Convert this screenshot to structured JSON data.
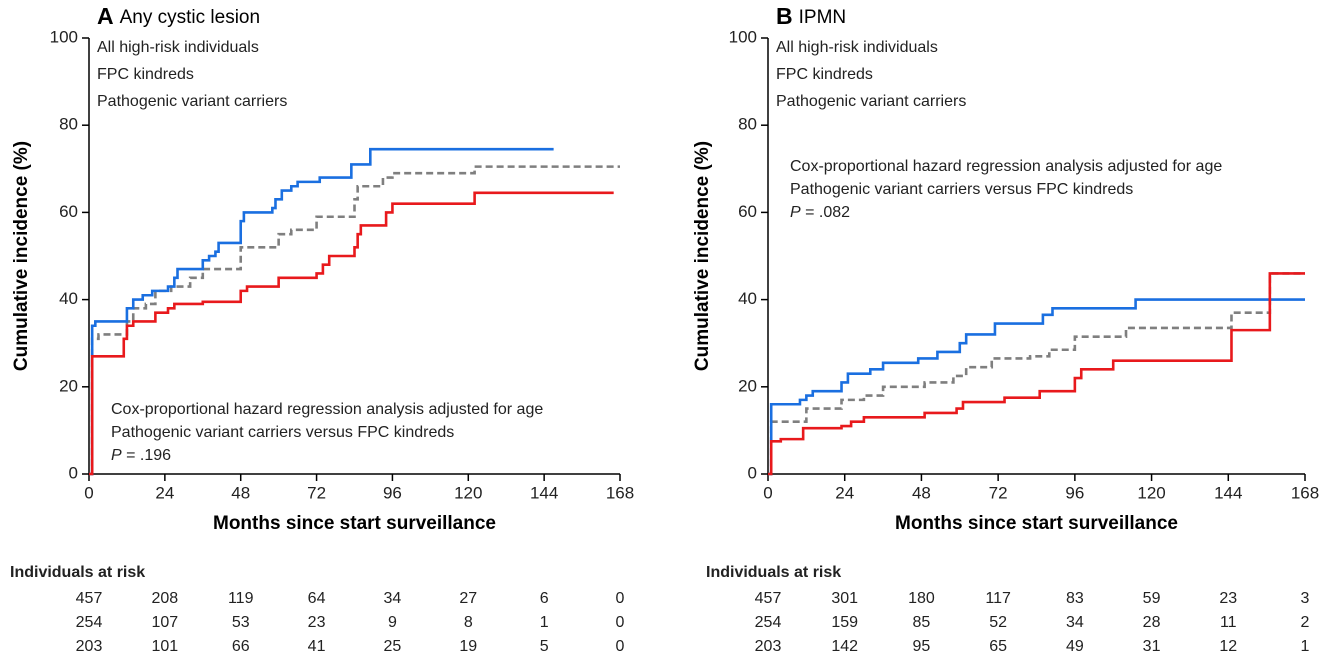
{
  "chart_data": [
    {
      "type": "step",
      "panel": "A",
      "title": "Any cystic lesion",
      "x_label": "Months since start surveillance",
      "y_label": "Cumulative incidence (%)",
      "xlim": [
        0,
        168
      ],
      "xticks": [
        0,
        24,
        48,
        72,
        96,
        120,
        144,
        168
      ],
      "ylim": [
        0,
        100
      ],
      "yticks": [
        0,
        20,
        40,
        60,
        80,
        100
      ],
      "series": [
        {
          "name": "All high-risk individuals",
          "color": "#7f7f7f",
          "dashed": true,
          "x": [
            0,
            1,
            3,
            12,
            14,
            18,
            21,
            26,
            32,
            36,
            48,
            60,
            64,
            72,
            84,
            85,
            93,
            96,
            122,
            168
          ],
          "values": [
            0,
            31,
            32,
            35,
            38,
            39,
            42,
            43,
            45,
            47,
            52,
            55,
            56,
            59,
            63,
            66,
            68,
            69,
            70.5,
            70.5
          ]
        },
        {
          "name": "FPC kindreds",
          "color": "#1a6fe0",
          "dashed": false,
          "x": [
            0,
            1,
            2,
            12,
            14,
            17,
            20,
            25,
            27,
            28,
            36,
            38,
            40,
            41,
            48,
            49,
            58,
            59,
            61,
            64,
            66,
            73,
            83,
            89,
            147
          ],
          "values": [
            0,
            34,
            35,
            38,
            40,
            41,
            42,
            43,
            45,
            47,
            49,
            50,
            51,
            53,
            58,
            60,
            61,
            63,
            65,
            66,
            67,
            68,
            71,
            74.5,
            74.5
          ]
        },
        {
          "name": "Pathogenic variant carriers",
          "color": "#e8191c",
          "dashed": false,
          "x": [
            0,
            1,
            11,
            12,
            14,
            21,
            25,
            27,
            36,
            48,
            50,
            60,
            72,
            74,
            76,
            84,
            85,
            86,
            94,
            96,
            122,
            166
          ],
          "values": [
            0,
            27,
            31,
            34,
            35,
            37,
            38,
            39,
            39.5,
            42,
            43,
            45,
            46,
            48,
            50,
            52,
            55,
            57,
            60,
            62,
            64.5,
            64.5
          ]
        }
      ],
      "annotation": {
        "lines": [
          "Cox-proportional hazard regression analysis adjusted for age",
          "Pathogenic variant carriers versus FPC kindreds"
        ],
        "p_symbol": "P",
        "p_text": " = .196"
      },
      "risk_table": {
        "title": "Individuals at risk",
        "rows": [
          [
            457,
            208,
            119,
            64,
            34,
            27,
            6,
            0
          ],
          [
            254,
            107,
            53,
            23,
            9,
            8,
            1,
            0
          ],
          [
            203,
            101,
            66,
            41,
            25,
            19,
            5,
            0
          ]
        ]
      }
    },
    {
      "type": "step",
      "panel": "B",
      "title": "IPMN",
      "x_label": "Months since start surveillance",
      "y_label": "Cumulative incidence (%)",
      "xlim": [
        0,
        168
      ],
      "xticks": [
        0,
        24,
        48,
        72,
        96,
        120,
        144,
        168
      ],
      "ylim": [
        0,
        100
      ],
      "yticks": [
        0,
        20,
        40,
        60,
        80,
        100
      ],
      "series": [
        {
          "name": "All high-risk individuals",
          "color": "#7f7f7f",
          "dashed": true,
          "x": [
            0,
            1,
            12,
            23,
            30,
            36,
            49,
            58,
            62,
            70,
            82,
            88,
            96,
            112,
            145,
            157,
            168
          ],
          "values": [
            0,
            12,
            15,
            17,
            18,
            20,
            21,
            22.5,
            24.5,
            26.5,
            27,
            28.5,
            31.5,
            33.5,
            37,
            46,
            46
          ]
        },
        {
          "name": "FPC kindreds",
          "color": "#1a6fe0",
          "dashed": false,
          "x": [
            0,
            1,
            10,
            12,
            14,
            23,
            25,
            32,
            36,
            47,
            53,
            60,
            62,
            71,
            86,
            89,
            115,
            168
          ],
          "values": [
            0,
            16,
            17,
            18,
            19,
            21,
            23,
            24,
            25.5,
            26.5,
            28,
            30,
            32,
            34.5,
            36.5,
            38,
            40,
            40
          ]
        },
        {
          "name": "Pathogenic variant carriers",
          "color": "#e8191c",
          "dashed": false,
          "x": [
            0,
            1,
            4,
            11,
            23,
            26,
            30,
            49,
            59,
            61,
            74,
            85,
            96,
            98,
            108,
            145,
            157,
            168
          ],
          "values": [
            0,
            7.5,
            8,
            10.5,
            11,
            12,
            13,
            14,
            15,
            16.5,
            17.5,
            19,
            22,
            24,
            26,
            33,
            46,
            46
          ]
        }
      ],
      "annotation": {
        "lines": [
          "Cox-proportional hazard regression analysis adjusted for age",
          "Pathogenic variant carriers versus FPC kindreds"
        ],
        "p_symbol": "P",
        "p_text": " = .082"
      },
      "risk_table": {
        "title": "Individuals at risk",
        "rows": [
          [
            457,
            301,
            180,
            117,
            83,
            59,
            23,
            3
          ],
          [
            254,
            159,
            85,
            52,
            34,
            28,
            11,
            2
          ],
          [
            203,
            142,
            95,
            65,
            49,
            31,
            12,
            1
          ]
        ]
      }
    }
  ]
}
